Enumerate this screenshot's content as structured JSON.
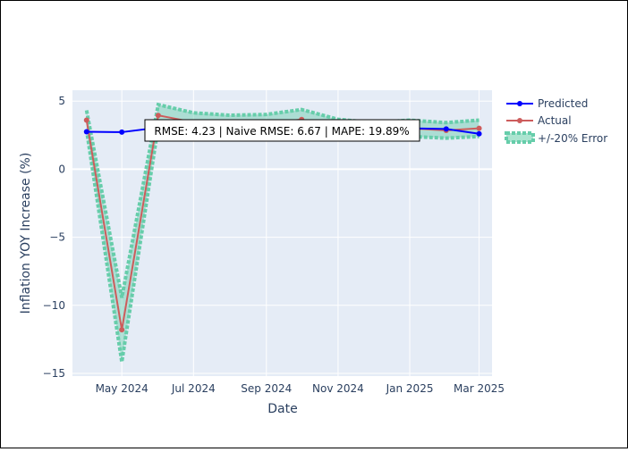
{
  "chart_data": {
    "type": "line",
    "xlabel": "Date",
    "ylabel": "Inflation YOY Increase (%)",
    "x": [
      "2024-04-01",
      "2024-05-01",
      "2024-06-01",
      "2024-07-01",
      "2024-08-01",
      "2024-09-01",
      "2024-10-01",
      "2024-11-01",
      "2024-12-01",
      "2025-01-01",
      "2025-02-01",
      "2025-03-01"
    ],
    "series": [
      {
        "name": "Predicted",
        "color": "#0000ff",
        "values": [
          2.75,
          2.72,
          3.05,
          3.15,
          3.15,
          3.15,
          3.15,
          3.1,
          3.05,
          3.0,
          2.95,
          2.6
        ]
      },
      {
        "name": "Actual",
        "color": "#cd5c5c",
        "values": [
          3.6,
          -11.8,
          3.95,
          3.45,
          3.3,
          3.35,
          3.65,
          3.05,
          2.85,
          3.0,
          2.85,
          3.0
        ]
      },
      {
        "name": "+/-20% Error",
        "color": "#66cdaa",
        "upper": [
          4.32,
          -9.44,
          4.74,
          4.14,
          3.96,
          4.02,
          4.38,
          3.66,
          3.42,
          3.6,
          3.42,
          3.6
        ],
        "lower": [
          2.88,
          -14.16,
          3.16,
          2.76,
          2.64,
          2.68,
          2.92,
          2.44,
          2.28,
          2.4,
          2.28,
          2.4
        ]
      }
    ],
    "x_ticks": [
      {
        "date": "2024-05-01",
        "label": "May 2024"
      },
      {
        "date": "2024-07-01",
        "label": "Jul 2024"
      },
      {
        "date": "2024-09-01",
        "label": "Sep 2024"
      },
      {
        "date": "2024-11-01",
        "label": "Nov 2024"
      },
      {
        "date": "2025-01-01",
        "label": "Jan 2025"
      },
      {
        "date": "2025-03-01",
        "label": "Mar 2025"
      }
    ],
    "y_ticks": [
      5,
      0,
      -5,
      -10,
      -15
    ],
    "y_tick_labels": [
      "5",
      "0",
      "−5",
      "−10",
      "−15"
    ],
    "ylim": [
      -15.2,
      5.8
    ],
    "xlim": [
      "2024-03-20",
      "2025-03-12"
    ],
    "annotation": "RMSE: 4.23 | Naive RMSE: 6.67 | MAPE: 19.89%",
    "legend_position": "right",
    "grid": true
  }
}
